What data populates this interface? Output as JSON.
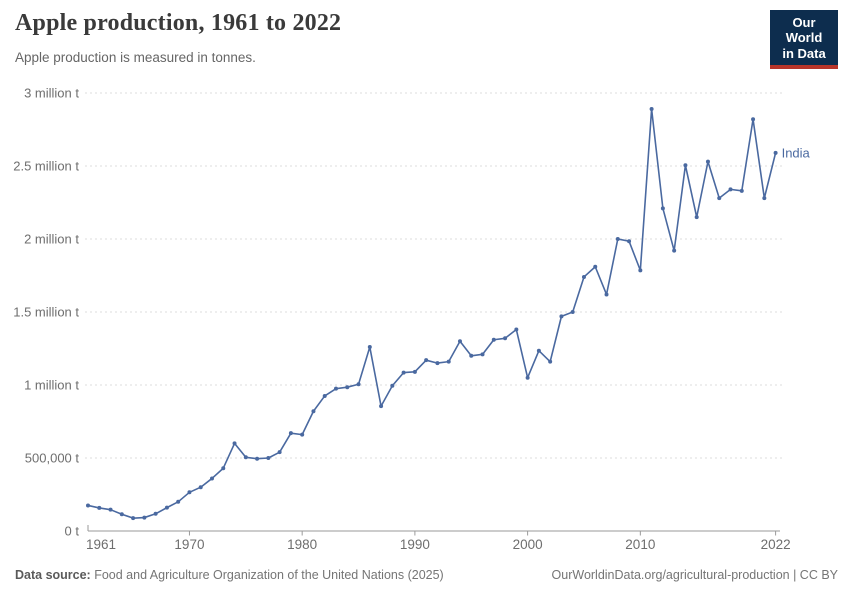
{
  "header": {
    "title": "Apple production, 1961 to 2022",
    "subtitle": "Apple production is measured in tonnes.",
    "logo": {
      "line1": "Our World",
      "line2": "in Data"
    }
  },
  "footer": {
    "datasource_label": "Data source:",
    "datasource_text": " Food and Agriculture Organization of the United Nations (2025)",
    "citation": "OurWorldinData.org/agricultural-production | CC BY"
  },
  "colors": {
    "line": "#4a69a0",
    "grid": "#dcdcdc",
    "axis": "#9a9a9a",
    "tick_text": "#6e6e6e",
    "logo_bg": "#0d2d4e",
    "logo_accent": "#b8352a"
  },
  "chart_data": {
    "type": "line",
    "title": "Apple production, 1961 to 2022",
    "subtitle": "Apple production is measured in tonnes.",
    "unit": "tonnes",
    "xlabel": "",
    "ylabel": "",
    "xlim": [
      1961,
      2022
    ],
    "ylim": [
      0,
      3000000
    ],
    "grid": true,
    "legend_position": "end-of-line",
    "xticks": [
      1961,
      1970,
      1980,
      1990,
      2000,
      2010,
      2022
    ],
    "yticks": [
      {
        "value": 0,
        "label": "0 t"
      },
      {
        "value": 500000,
        "label": "500,000 t"
      },
      {
        "value": 1000000,
        "label": "1 million t"
      },
      {
        "value": 1500000,
        "label": "1.5 million t"
      },
      {
        "value": 2000000,
        "label": "2 million t"
      },
      {
        "value": 2500000,
        "label": "2.5 million t"
      },
      {
        "value": 3000000,
        "label": "3 million t"
      }
    ],
    "series": [
      {
        "name": "India",
        "color": "#4a69a0",
        "x": [
          1961,
          1962,
          1963,
          1964,
          1965,
          1966,
          1967,
          1968,
          1969,
          1970,
          1971,
          1972,
          1973,
          1974,
          1975,
          1976,
          1977,
          1978,
          1979,
          1980,
          1981,
          1982,
          1983,
          1984,
          1985,
          1986,
          1987,
          1988,
          1989,
          1990,
          1991,
          1992,
          1993,
          1994,
          1995,
          1996,
          1997,
          1998,
          1999,
          2000,
          2001,
          2002,
          2003,
          2004,
          2005,
          2006,
          2007,
          2008,
          2009,
          2010,
          2011,
          2012,
          2013,
          2014,
          2015,
          2016,
          2017,
          2018,
          2019,
          2020,
          2021,
          2022
        ],
        "values": [
          175000,
          158000,
          146000,
          115000,
          88000,
          92000,
          118000,
          160000,
          200000,
          265000,
          300000,
          360000,
          430000,
          600000,
          505000,
          495000,
          500000,
          540000,
          670000,
          660000,
          820000,
          925000,
          975000,
          985000,
          1005000,
          1260000,
          855000,
          995000,
          1085000,
          1090000,
          1170000,
          1150000,
          1160000,
          1300000,
          1200000,
          1210000,
          1310000,
          1320000,
          1380000,
          1050000,
          1235000,
          1160000,
          1470000,
          1500000,
          1740000,
          1810000,
          1620000,
          2000000,
          1985000,
          1785000,
          2890000,
          2210000,
          1920000,
          2505000,
          2150000,
          2530000,
          2280000,
          2340000,
          2330000,
          2820000,
          2280000,
          2590000
        ]
      }
    ]
  }
}
